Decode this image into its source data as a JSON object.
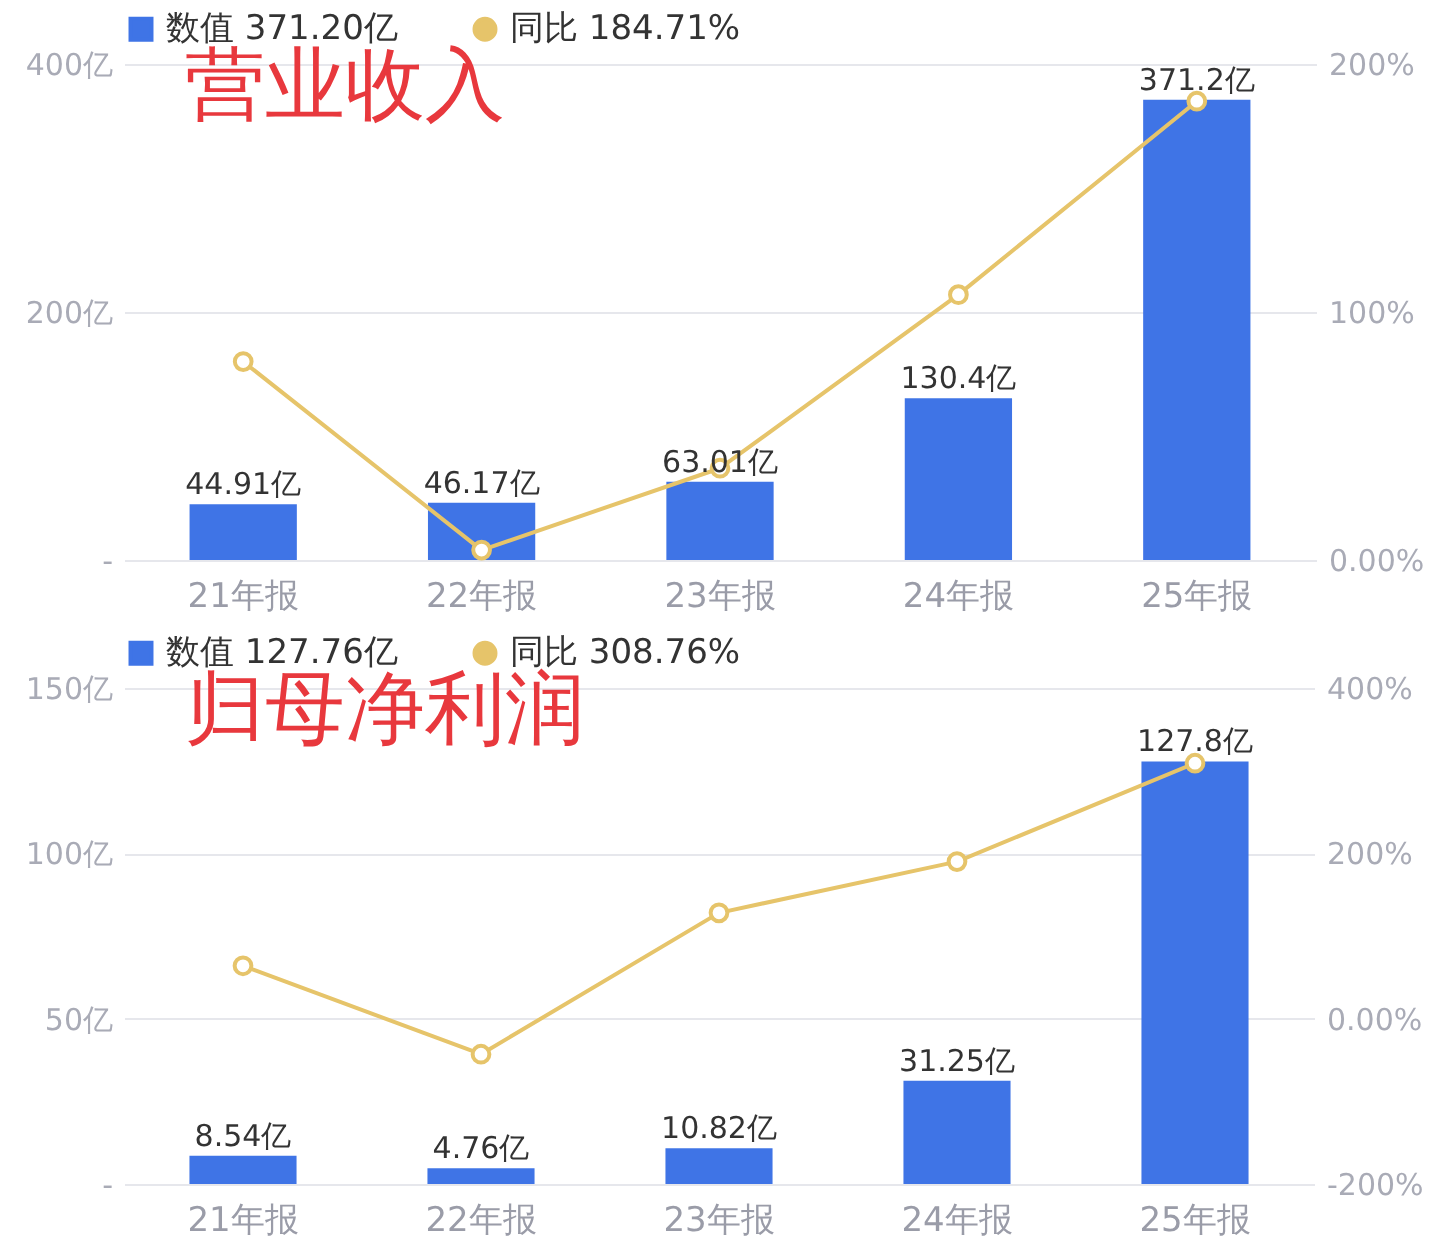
{
  "chart_data": [
    {
      "type": "bar",
      "title": "营业收入",
      "categories": [
        "21年报",
        "22年报",
        "23年报",
        "24年报",
        "25年报"
      ],
      "series": [
        {
          "name": "数值 371.20亿",
          "color": "#3f74e6",
          "values": [
            44.91,
            46.17,
            63.01,
            130.4,
            371.2
          ],
          "value_labels": [
            "44.91亿",
            "46.17亿",
            "63.01亿",
            "130.4亿",
            "371.2亿"
          ]
        },
        {
          "name": "同比 184.71%",
          "type": "line",
          "axis": "y2",
          "color": "#e6c46a",
          "values": [
            80,
            4,
            37,
            107,
            185
          ]
        }
      ],
      "ylim": [
        0,
        400
      ],
      "yticks": [
        {
          "value": 0,
          "label": "-"
        },
        {
          "value": 200,
          "label": "200亿"
        },
        {
          "value": 400,
          "label": "400亿"
        }
      ],
      "y2lim": [
        0,
        200
      ],
      "y2ticks": [
        {
          "value": 0,
          "label": "0.00%"
        },
        {
          "value": 100,
          "label": "100%"
        },
        {
          "value": 200,
          "label": "200%"
        }
      ],
      "grid": "y",
      "legend": "top left",
      "marker": "circle"
    },
    {
      "type": "bar",
      "title": "归母净利润",
      "categories": [
        "21年报",
        "22年报",
        "23年报",
        "24年报",
        "25年报"
      ],
      "series": [
        {
          "name": "数值 127.76亿",
          "color": "#3f74e6",
          "values": [
            8.54,
            4.76,
            10.82,
            31.25,
            127.8
          ],
          "value_labels": [
            "8.54亿",
            "4.76亿",
            "10.82亿",
            "31.25亿",
            "127.8亿"
          ]
        },
        {
          "name": "同比 308.76%",
          "type": "line",
          "axis": "y2",
          "color": "#e6c46a",
          "values": [
            64,
            -43,
            128,
            190,
            309
          ]
        }
      ],
      "ylim": [
        0,
        150
      ],
      "yticks": [
        {
          "value": 0,
          "label": "-"
        },
        {
          "value": 50,
          "label": "50亿"
        },
        {
          "value": 100,
          "label": "100亿"
        },
        {
          "value": 150,
          "label": "150亿"
        }
      ],
      "y2lim": [
        -200,
        400
      ],
      "y2ticks": [
        {
          "value": -200,
          "label": "-200%"
        },
        {
          "value": 0,
          "label": "0.00%"
        },
        {
          "value": 200,
          "label": "200%"
        },
        {
          "value": 400,
          "label": "400%"
        }
      ],
      "grid": "y",
      "legend": "top left",
      "marker": "circle"
    }
  ]
}
